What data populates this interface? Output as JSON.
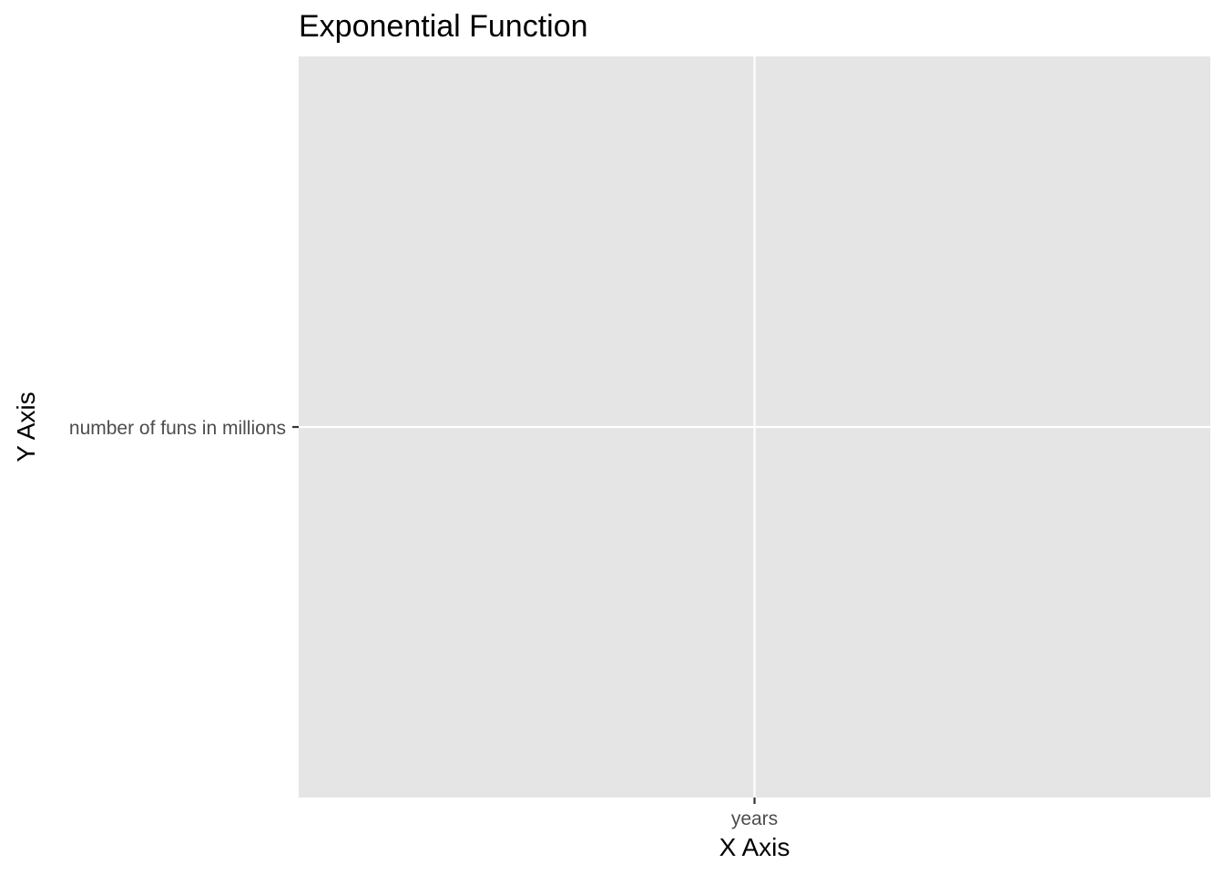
{
  "chart_data": {
    "type": "scatter",
    "title": "Exponential Function",
    "xlabel": "X Axis",
    "ylabel": "Y Axis",
    "x_ticks": [
      "years"
    ],
    "y_ticks": [
      "number of funs in millions"
    ],
    "x_scale": "discrete",
    "y_scale": "discrete",
    "series": [],
    "grid": true,
    "legend": "none",
    "colors": {
      "panel_background": "#e5e5e5",
      "grid": "#ffffff",
      "tick_mark": "#333333",
      "tick_label": "#4d4d4d",
      "text": "#000000"
    }
  }
}
